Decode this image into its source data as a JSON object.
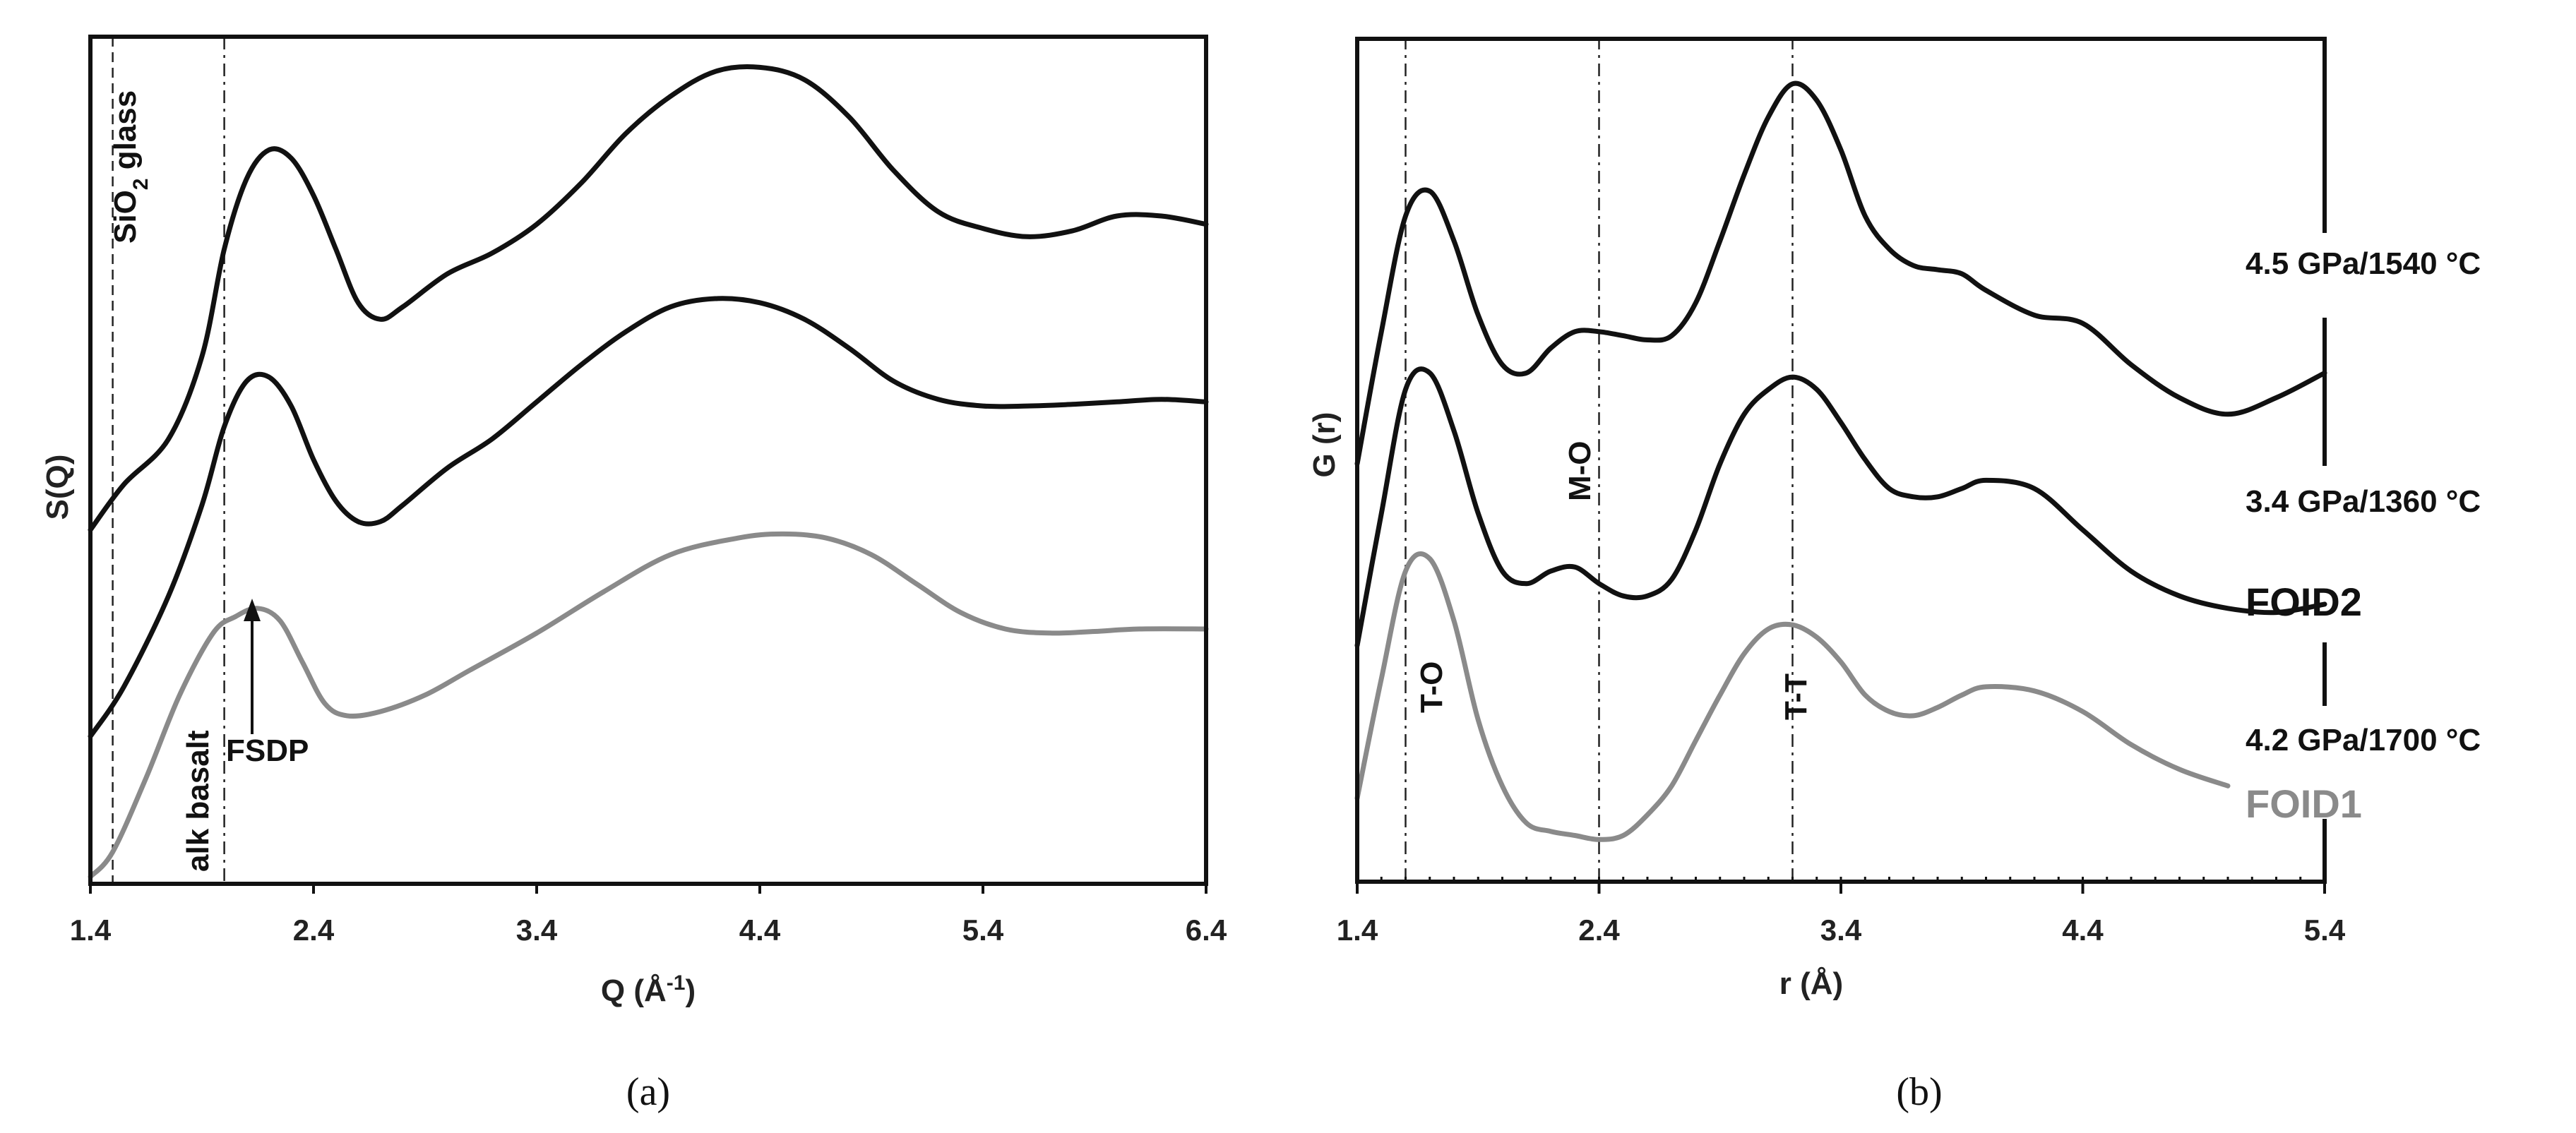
{
  "chart_data": [
    {
      "type": "line",
      "panel_label": "(a)",
      "xlabel": "Q (Å",
      "xlabel_sup": "-1",
      "xlabel_suffix": ")",
      "ylabel": "S(Q)",
      "xlim": [
        1.4,
        6.4
      ],
      "x_ticks": [
        "1.4",
        "2.4",
        "3.4",
        "4.4",
        "5.4",
        "6.4"
      ],
      "x_tick_values": [
        1.4,
        2.4,
        3.4,
        4.4,
        5.4,
        6.4
      ],
      "colors": {
        "black": "#111111",
        "gray": "#8a8a8a"
      },
      "reference_lines": [
        {
          "x": 1.5,
          "style": "dashed"
        },
        {
          "x": 2.0,
          "style": "dashdot"
        }
      ],
      "series": [
        {
          "color": "#111111",
          "x": [
            1.4,
            1.55,
            1.75,
            1.9,
            2.0,
            2.1,
            2.2,
            2.3,
            2.4,
            2.5,
            2.6,
            2.7,
            2.8,
            3.0,
            3.2,
            3.4,
            3.6,
            3.8,
            4.0,
            4.2,
            4.4,
            4.6,
            4.8,
            5.0,
            5.2,
            5.4,
            5.6,
            5.8,
            6.0,
            6.2,
            6.4
          ],
          "y": [
            4.2,
            4.75,
            5.3,
            6.3,
            7.6,
            8.45,
            8.8,
            8.7,
            8.25,
            7.6,
            6.95,
            6.75,
            6.9,
            7.3,
            7.55,
            7.9,
            8.4,
            9.0,
            9.45,
            9.75,
            9.8,
            9.65,
            9.2,
            8.55,
            8.05,
            7.85,
            7.75,
            7.82,
            8.0,
            8.0,
            7.9
          ]
        },
        {
          "color": "#111111",
          "x": [
            1.4,
            1.55,
            1.75,
            1.9,
            2.0,
            2.1,
            2.2,
            2.3,
            2.4,
            2.5,
            2.6,
            2.7,
            2.8,
            3.0,
            3.2,
            3.4,
            3.6,
            3.8,
            4.0,
            4.2,
            4.4,
            4.6,
            4.8,
            5.0,
            5.2,
            5.4,
            5.6,
            5.8,
            6.0,
            6.2,
            6.4
          ],
          "y": [
            1.7,
            2.3,
            3.4,
            4.5,
            5.45,
            6.0,
            6.05,
            5.7,
            5.05,
            4.55,
            4.3,
            4.3,
            4.5,
            4.95,
            5.3,
            5.75,
            6.2,
            6.6,
            6.9,
            7.0,
            6.95,
            6.75,
            6.4,
            6.0,
            5.78,
            5.7,
            5.7,
            5.72,
            5.75,
            5.78,
            5.75
          ]
        },
        {
          "color": "#8a8a8a",
          "x": [
            1.4,
            1.5,
            1.65,
            1.8,
            1.95,
            2.05,
            2.15,
            2.25,
            2.35,
            2.45,
            2.55,
            2.7,
            2.9,
            3.1,
            3.4,
            3.7,
            4.0,
            4.3,
            4.5,
            4.7,
            4.9,
            5.1,
            5.3,
            5.5,
            5.7,
            5.9,
            6.1,
            6.4
          ],
          "y": [
            0.0,
            0.3,
            1.2,
            2.2,
            2.95,
            3.15,
            3.25,
            3.1,
            2.6,
            2.1,
            1.95,
            2.0,
            2.2,
            2.5,
            2.95,
            3.45,
            3.9,
            4.1,
            4.15,
            4.1,
            3.9,
            3.55,
            3.2,
            3.0,
            2.95,
            2.97,
            3.0,
            3.0
          ]
        }
      ],
      "annotations": {
        "sio2_prefix": "SiO",
        "sio2_sub": "2",
        "sio2_suffix": " glass",
        "alk_basalt": "alk basalt",
        "fsdp": "FSDP"
      }
    },
    {
      "type": "line",
      "panel_label": "(b)",
      "xlabel": "r (Å)",
      "ylabel": "G (r)",
      "xlim": [
        1.4,
        5.4
      ],
      "x_ticks": [
        "1.4",
        "2.4",
        "3.4",
        "4.4",
        "5.4"
      ],
      "x_tick_values": [
        1.4,
        2.4,
        3.4,
        4.4,
        5.4
      ],
      "reference_lines": [
        {
          "x": 1.6,
          "label": "T-O"
        },
        {
          "x": 2.4,
          "label": "M-O"
        },
        {
          "x": 3.2,
          "label": "T-T"
        }
      ],
      "series": [
        {
          "name": "4.5 GPa/1540 °C",
          "color": "#111111",
          "x": [
            1.4,
            1.5,
            1.6,
            1.7,
            1.8,
            1.9,
            2.0,
            2.1,
            2.2,
            2.3,
            2.4,
            2.5,
            2.6,
            2.7,
            2.8,
            2.9,
            3.0,
            3.1,
            3.2,
            3.3,
            3.4,
            3.5,
            3.6,
            3.7,
            3.8,
            3.9,
            4.0,
            4.2,
            4.4,
            4.6,
            4.8,
            5.0,
            5.2,
            5.4
          ],
          "y": [
            5.0,
            6.6,
            8.0,
            8.3,
            7.7,
            6.8,
            6.2,
            6.1,
            6.4,
            6.6,
            6.6,
            6.55,
            6.5,
            6.55,
            6.95,
            7.7,
            8.5,
            9.2,
            9.6,
            9.4,
            8.8,
            8.0,
            7.6,
            7.4,
            7.35,
            7.3,
            7.1,
            6.8,
            6.7,
            6.2,
            5.8,
            5.6,
            5.8,
            6.1
          ]
        },
        {
          "name": "3.4 GPa/1360 °C",
          "color": "#111111",
          "x": [
            1.4,
            1.5,
            1.6,
            1.7,
            1.8,
            1.9,
            2.0,
            2.1,
            2.2,
            2.3,
            2.4,
            2.5,
            2.6,
            2.7,
            2.8,
            2.9,
            3.0,
            3.1,
            3.2,
            3.3,
            3.4,
            3.5,
            3.6,
            3.7,
            3.8,
            3.9,
            4.0,
            4.2,
            4.4,
            4.6,
            4.8,
            5.0,
            5.2,
            5.4
          ],
          "y": [
            2.8,
            4.4,
            5.9,
            6.1,
            5.4,
            4.4,
            3.7,
            3.55,
            3.7,
            3.75,
            3.55,
            3.4,
            3.4,
            3.6,
            4.2,
            5.0,
            5.6,
            5.9,
            6.05,
            5.9,
            5.5,
            5.05,
            4.7,
            4.6,
            4.6,
            4.7,
            4.8,
            4.7,
            4.2,
            3.7,
            3.4,
            3.25,
            3.2,
            3.3
          ]
        },
        {
          "name": "4.2 GPa/1700 °C",
          "color": "#8a8a8a",
          "x": [
            1.4,
            1.5,
            1.6,
            1.7,
            1.8,
            1.9,
            2.0,
            2.1,
            2.2,
            2.3,
            2.4,
            2.5,
            2.6,
            2.7,
            2.8,
            2.9,
            3.0,
            3.1,
            3.2,
            3.3,
            3.4,
            3.5,
            3.6,
            3.7,
            3.8,
            3.9,
            4.0,
            4.2,
            4.4,
            4.6,
            4.8,
            5.0
          ],
          "y": [
            0.95,
            2.4,
            3.7,
            3.85,
            3.1,
            1.9,
            1.1,
            0.65,
            0.55,
            0.5,
            0.45,
            0.5,
            0.75,
            1.1,
            1.65,
            2.2,
            2.7,
            3.0,
            3.05,
            2.9,
            2.6,
            2.2,
            2.0,
            1.95,
            2.05,
            2.2,
            2.3,
            2.25,
            2.0,
            1.6,
            1.3,
            1.1
          ]
        }
      ],
      "legend_labels": {
        "s1": "4.5 GPa/1540 °C",
        "s2": "3.4 GPa/1360 °C",
        "foid2": "FOID2",
        "s3": "4.2 GPa/1700 °C",
        "foid1": "FOID1"
      }
    }
  ]
}
